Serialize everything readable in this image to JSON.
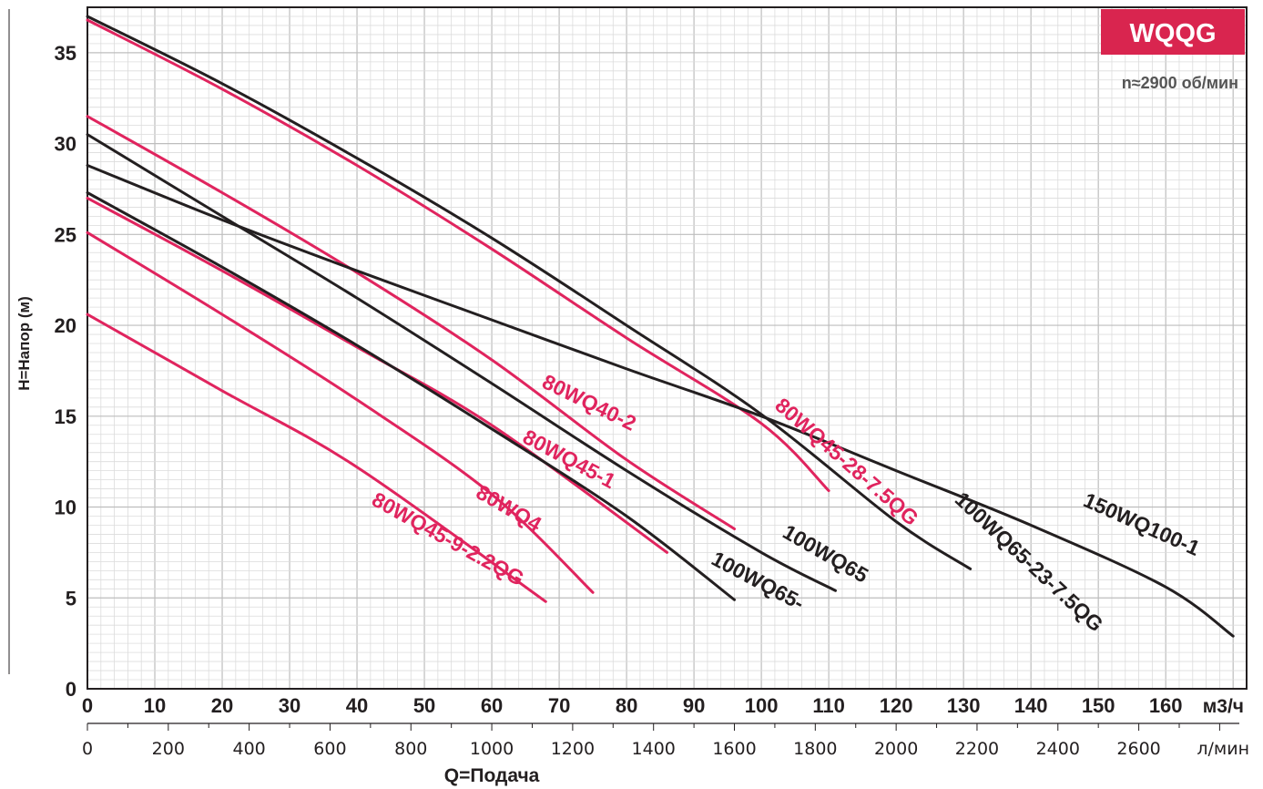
{
  "chart_data": {
    "type": "line",
    "badge": "WQQG",
    "subtitle": "n≈2900 об/мин",
    "ylabel": "H=Напор (м)",
    "xlabel": "Q=Подача",
    "x_unit": "м3/ч",
    "x2_unit": "л/мин",
    "xlim": [
      0,
      172
    ],
    "ylim": [
      0,
      37.5
    ],
    "x_ticks": [
      0,
      10,
      20,
      30,
      40,
      50,
      60,
      70,
      80,
      90,
      100,
      110,
      120,
      130,
      140,
      150,
      160
    ],
    "x2_ticks": [
      "0",
      "200",
      "400",
      "600",
      "800",
      "1000",
      "1200",
      "1400",
      "1600",
      "1800",
      "2000",
      "2200",
      "2400",
      "2600"
    ],
    "y_ticks": [
      0,
      5,
      10,
      15,
      20,
      25,
      30,
      35
    ],
    "grid": true,
    "colors": {
      "red": "#e0245e",
      "black": "#231f20",
      "badge": "#d9254f"
    },
    "series": [
      {
        "name": "80WQ45-9-2.2QG",
        "color": "red",
        "points": [
          [
            0,
            20.6
          ],
          [
            20,
            16.4
          ],
          [
            40,
            12.2
          ],
          [
            68,
            4.8
          ]
        ]
      },
      {
        "name": "80WQ4",
        "color": "red",
        "points": [
          [
            0,
            25.1
          ],
          [
            20,
            20.6
          ],
          [
            40,
            15.9
          ],
          [
            60,
            10.7
          ],
          [
            75,
            5.3
          ]
        ]
      },
      {
        "name": "80WQ45-1",
        "color": "red",
        "points": [
          [
            0,
            27.0
          ],
          [
            20,
            23.0
          ],
          [
            40,
            18.8
          ],
          [
            60,
            14.5
          ],
          [
            86,
            7.5
          ]
        ]
      },
      {
        "name": "80WQ40-2",
        "color": "red",
        "points": [
          [
            0,
            31.5
          ],
          [
            20,
            27.3
          ],
          [
            40,
            22.9
          ],
          [
            60,
            18.1
          ],
          [
            80,
            12.6
          ],
          [
            96,
            8.8
          ]
        ]
      },
      {
        "name": "80WQ45-28-7.5QG",
        "color": "red",
        "points": [
          [
            0,
            36.8
          ],
          [
            20,
            33.0
          ],
          [
            40,
            28.8
          ],
          [
            60,
            24.2
          ],
          [
            80,
            19.3
          ],
          [
            100,
            14.6
          ],
          [
            110,
            10.9
          ]
        ]
      },
      {
        "name": "100WQ65-",
        "color": "black",
        "points": [
          [
            0,
            27.3
          ],
          [
            20,
            23.2
          ],
          [
            40,
            18.9
          ],
          [
            60,
            14.3
          ],
          [
            80,
            9.5
          ],
          [
            96,
            4.9
          ]
        ]
      },
      {
        "name": "100WQ65",
        "color": "black",
        "points": [
          [
            0,
            30.5
          ],
          [
            20,
            26.0
          ],
          [
            40,
            21.5
          ],
          [
            60,
            16.8
          ],
          [
            80,
            12.0
          ],
          [
            100,
            7.5
          ],
          [
            111,
            5.4
          ]
        ]
      },
      {
        "name": "100WQ65-23-7.5QG",
        "color": "black",
        "points": [
          [
            0,
            37.0
          ],
          [
            20,
            33.3
          ],
          [
            40,
            29.2
          ],
          [
            60,
            24.8
          ],
          [
            80,
            20.0
          ],
          [
            100,
            15.1
          ],
          [
            120,
            9.2
          ],
          [
            131,
            6.6
          ]
        ]
      },
      {
        "name": "150WQ100-1",
        "color": "black",
        "points": [
          [
            0,
            28.8
          ],
          [
            20,
            25.8
          ],
          [
            40,
            23.0
          ],
          [
            60,
            20.3
          ],
          [
            80,
            17.6
          ],
          [
            100,
            15.0
          ],
          [
            120,
            12.0
          ],
          [
            140,
            9.0
          ],
          [
            160,
            5.6
          ],
          [
            170,
            2.9
          ]
        ]
      }
    ],
    "labels": [
      {
        "text": "80WQ45-9-2.2QG",
        "x": 53,
        "y": 7.9,
        "angle": 29,
        "color": "red"
      },
      {
        "text": "80WQ4",
        "x": 62,
        "y": 9.6,
        "angle": 30,
        "color": "red"
      },
      {
        "text": "80WQ45-1",
        "x": 71,
        "y": 12.3,
        "angle": 28,
        "color": "red"
      },
      {
        "text": "80WQ40-2",
        "x": 74,
        "y": 15.4,
        "angle": 26,
        "color": "red"
      },
      {
        "text": "80WQ45-28-7.5QG",
        "x": 112,
        "y": 12.2,
        "angle": 41,
        "color": "red"
      },
      {
        "text": "100WQ65-",
        "x": 99,
        "y": 5.6,
        "angle": 28,
        "color": "black"
      },
      {
        "text": "100WQ65",
        "x": 109,
        "y": 7.1,
        "angle": 30,
        "color": "black"
      },
      {
        "text": "100WQ65-23-7.5QG",
        "x": 139,
        "y": 6.7,
        "angle": 43,
        "color": "black"
      },
      {
        "text": "150WQ100-1",
        "x": 156,
        "y": 8.7,
        "angle": 24,
        "color": "black"
      }
    ]
  }
}
